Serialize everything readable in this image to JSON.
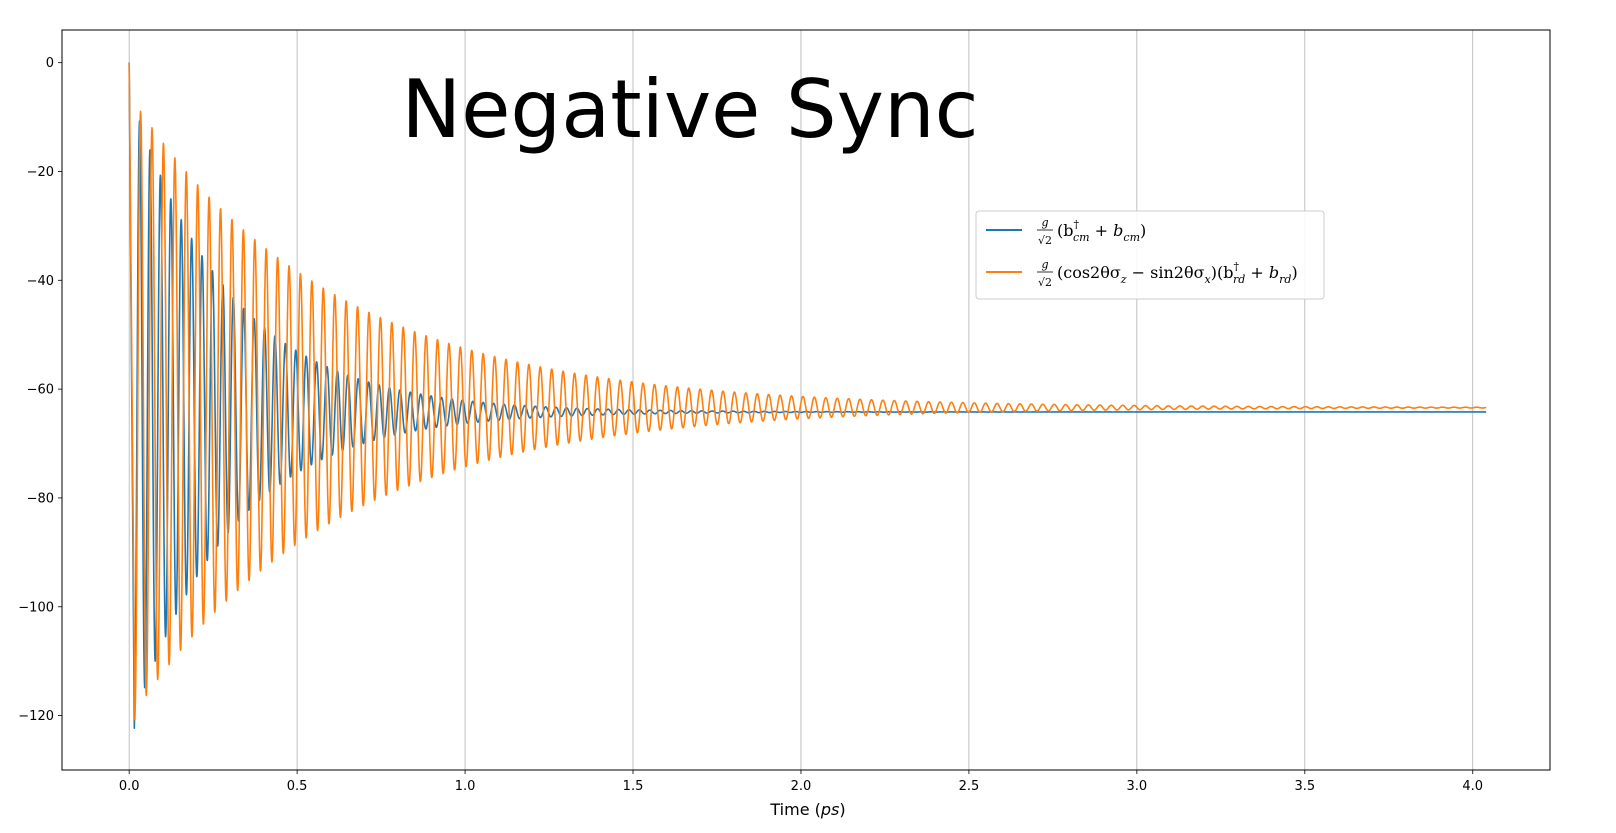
{
  "chart_data": {
    "type": "line",
    "title": "Negative Sync",
    "xlabel": "Time (ps)",
    "ylabel": "",
    "xlim": [
      -0.2,
      4.23
    ],
    "ylim": [
      -130,
      6
    ],
    "xticks": [
      0.0,
      0.5,
      1.0,
      1.5,
      2.0,
      2.5,
      3.0,
      3.5,
      4.0
    ],
    "xtick_labels": [
      "0.0",
      "0.5",
      "1.0",
      "1.5",
      "2.0",
      "2.5",
      "3.0",
      "3.5",
      "4.0"
    ],
    "yticks": [
      0,
      -20,
      -40,
      -60,
      -80,
      -100,
      -120
    ],
    "ytick_labels": [
      "0",
      "−20",
      "−40",
      "−60",
      "−80",
      "−100",
      "−120"
    ],
    "grid": "vertical",
    "legend_position": "upper-right",
    "series": [
      {
        "name": "g/√2 (b†cm + bcm)",
        "color": "#1f77b4",
        "start": 0.0,
        "end": 4.04,
        "initial": 0,
        "final": -64.2,
        "first_min": -123.5,
        "oscillation_period_ps": 0.031,
        "decay_time_ps": 0.3
      },
      {
        "name": "g/√2 (cos2θσz − sin2θσx)(b†rd + brd)",
        "color": "#ff7f0e",
        "start": 0.0,
        "end": 4.04,
        "initial": 0,
        "final": -63.4,
        "first_min": -121.0,
        "oscillation_period_ps": 0.034,
        "decay_time_ps": 0.6
      }
    ]
  },
  "legend": {
    "entry1": {
      "frac_num": "g",
      "frac_den": "√2",
      "expr_a": "(b",
      "sup": "†",
      "sub_a": "cm",
      "expr_b": " + b",
      "sub_b": "cm",
      "expr_c": ")"
    },
    "entry2": {
      "frac_num": "g",
      "frac_den": "√2",
      "expr_a": "(cos2θσ",
      "sub_a": "z",
      "expr_b": " − sin2θσ",
      "sub_b": "x",
      "expr_c": ")(b",
      "sup": "†",
      "sub_c": "rd",
      "expr_d": " + b",
      "sub_d": "rd",
      "expr_e": ")"
    }
  },
  "xlabel_parts": {
    "pre": "Time (",
    "unit": "ps",
    "post": ")"
  }
}
